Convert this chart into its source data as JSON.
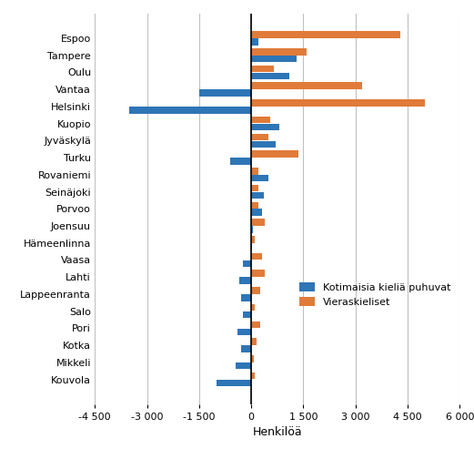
{
  "categories": [
    "Espoo",
    "Tampere",
    "Oulu",
    "Vantaa",
    "Helsinki",
    "Kuopio",
    "Jyväskylä",
    "Turku",
    "Rovaniemi",
    "Seinäjoki",
    "Porvoo",
    "Joensuu",
    "Hämeenlinna",
    "Vaasa",
    "Lahti",
    "Lappeenranta",
    "Salo",
    "Pori",
    "Kotka",
    "Mikkeli",
    "Kouvola"
  ],
  "kotimaisia": [
    200,
    1300,
    1100,
    -1500,
    -3500,
    800,
    700,
    -600,
    500,
    350,
    300,
    50,
    30,
    -250,
    -350,
    -300,
    -250,
    -400,
    -300,
    -450,
    -1000
  ],
  "vieraskieliset": [
    4300,
    1600,
    650,
    3200,
    5000,
    550,
    500,
    1350,
    200,
    200,
    200,
    400,
    100,
    300,
    400,
    250,
    100,
    250,
    150,
    80,
    100
  ],
  "blue_color": "#2e75b6",
  "orange_color": "#e07b39",
  "xlabel": "Henkilöä",
  "legend_kotimaisia": "Kotimaisia kieliä puhuvat",
  "legend_vieraskieliset": "Vieraskieliset",
  "xlim": [
    -4500,
    6000
  ],
  "xticks": [
    -4500,
    -3000,
    -1500,
    0,
    1500,
    3000,
    4500,
    6000
  ],
  "xtick_labels": [
    "-4 500",
    "-3 000",
    "-1 500",
    "0",
    "1 500",
    "3 000",
    "4 500",
    "6 000"
  ],
  "grid_color": "#c0c0c0",
  "bg_color": "#ffffff",
  "figwidth": 5.21,
  "figheight": 4.93,
  "dpi": 100
}
